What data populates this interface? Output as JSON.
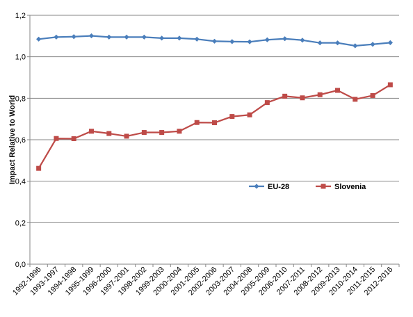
{
  "chart_data": {
    "type": "line",
    "title": "",
    "xlabel": "",
    "ylabel": "Impact Relative to World",
    "ylim": [
      0,
      1.2
    ],
    "yticks": [
      "0,0",
      "0,2",
      "0,4",
      "0,6",
      "0,8",
      "1,0",
      "1,2"
    ],
    "grid": true,
    "legend_position": "center-right",
    "categories": [
      "1992-1996",
      "1993-1997",
      "1994-1998",
      "1995-1999",
      "1996-2000",
      "1997-2001",
      "1998-2002",
      "1999-2003",
      "2000-2004",
      "2001-2005",
      "2002-2006",
      "2003-2007",
      "2004-2008",
      "2005-2009",
      "2006-2010",
      "2007-2011",
      "2008-2012",
      "2009-2013",
      "2010-2014",
      "2011-2015",
      "2012-2016"
    ],
    "series": [
      {
        "name": "EU-28",
        "color": "#4a7ebb",
        "marker": "diamond",
        "values": [
          1.085,
          1.095,
          1.097,
          1.101,
          1.095,
          1.095,
          1.095,
          1.09,
          1.09,
          1.085,
          1.075,
          1.073,
          1.072,
          1.082,
          1.087,
          1.08,
          1.067,
          1.067,
          1.053,
          1.06,
          1.068
        ]
      },
      {
        "name": "Slovenia",
        "color": "#be4b48",
        "marker": "square",
        "values": [
          0.462,
          0.606,
          0.605,
          0.641,
          0.63,
          0.617,
          0.635,
          0.635,
          0.641,
          0.683,
          0.682,
          0.712,
          0.72,
          0.779,
          0.81,
          0.802,
          0.817,
          0.838,
          0.795,
          0.813,
          0.865
        ]
      }
    ]
  }
}
